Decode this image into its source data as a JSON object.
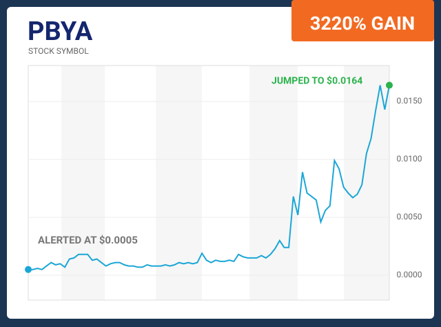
{
  "badge": "3220% GAIN",
  "chart_data": {
    "type": "line",
    "title": "PBYA",
    "subtitle": "STOCK SYMBOL",
    "annotations": [
      "ALERTED AT $0.0005",
      "JUMPED TO $0.0164"
    ],
    "color": "#1aa6d6",
    "end_color": "#2bb24c",
    "grid": true,
    "values": [
      0.0005,
      0.0005,
      0.0006,
      0.0005,
      0.0008,
      0.0011,
      0.0009,
      0.001,
      0.0007,
      0.0014,
      0.0015,
      0.0018,
      0.0018,
      0.0018,
      0.0013,
      0.0014,
      0.0011,
      0.0008,
      0.001,
      0.0011,
      0.0011,
      0.0009,
      0.0008,
      0.0008,
      0.0007,
      0.0007,
      0.0009,
      0.0008,
      0.0008,
      0.0008,
      0.0009,
      0.0008,
      0.0009,
      0.0011,
      0.001,
      0.0011,
      0.001,
      0.0011,
      0.0019,
      0.0013,
      0.0011,
      0.0013,
      0.0012,
      0.0012,
      0.0013,
      0.0012,
      0.0018,
      0.0016,
      0.0015,
      0.0015,
      0.0015,
      0.0017,
      0.0015,
      0.0018,
      0.0023,
      0.003,
      0.0024,
      0.0024,
      0.0068,
      0.0052,
      0.0089,
      0.0071,
      0.0068,
      0.0065,
      0.0046,
      0.0056,
      0.006,
      0.0099,
      0.0092,
      0.0076,
      0.0071,
      0.0067,
      0.007,
      0.0078,
      0.0105,
      0.0118,
      0.0142,
      0.0164,
      0.0143,
      0.0164
    ],
    "ylim": [
      -0.00214,
      0.0181
    ],
    "yticks": [
      {
        "value": 0,
        "label": "0.0000"
      },
      {
        "value": 0.005,
        "label": "0.0050"
      },
      {
        "value": 0.01,
        "label": "0.0100"
      },
      {
        "value": 0.015,
        "label": "0.0150"
      }
    ]
  }
}
